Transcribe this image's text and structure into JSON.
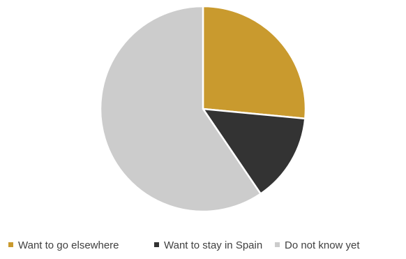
{
  "chart_data": {
    "type": "pie",
    "title": "",
    "slices": [
      {
        "label": "Want to go elsewhere",
        "value": 26.5,
        "color": "#C99A2E"
      },
      {
        "label": "Want to stay in Spain",
        "value": 14.0,
        "color": "#333333"
      },
      {
        "label": "Do not know yet",
        "value": 59.5,
        "color": "#CCCCCC"
      }
    ],
    "start_angle_deg": 0,
    "direction": "clockwise",
    "legend_position": "bottom",
    "slice_border_color": "#FFFFFF"
  }
}
